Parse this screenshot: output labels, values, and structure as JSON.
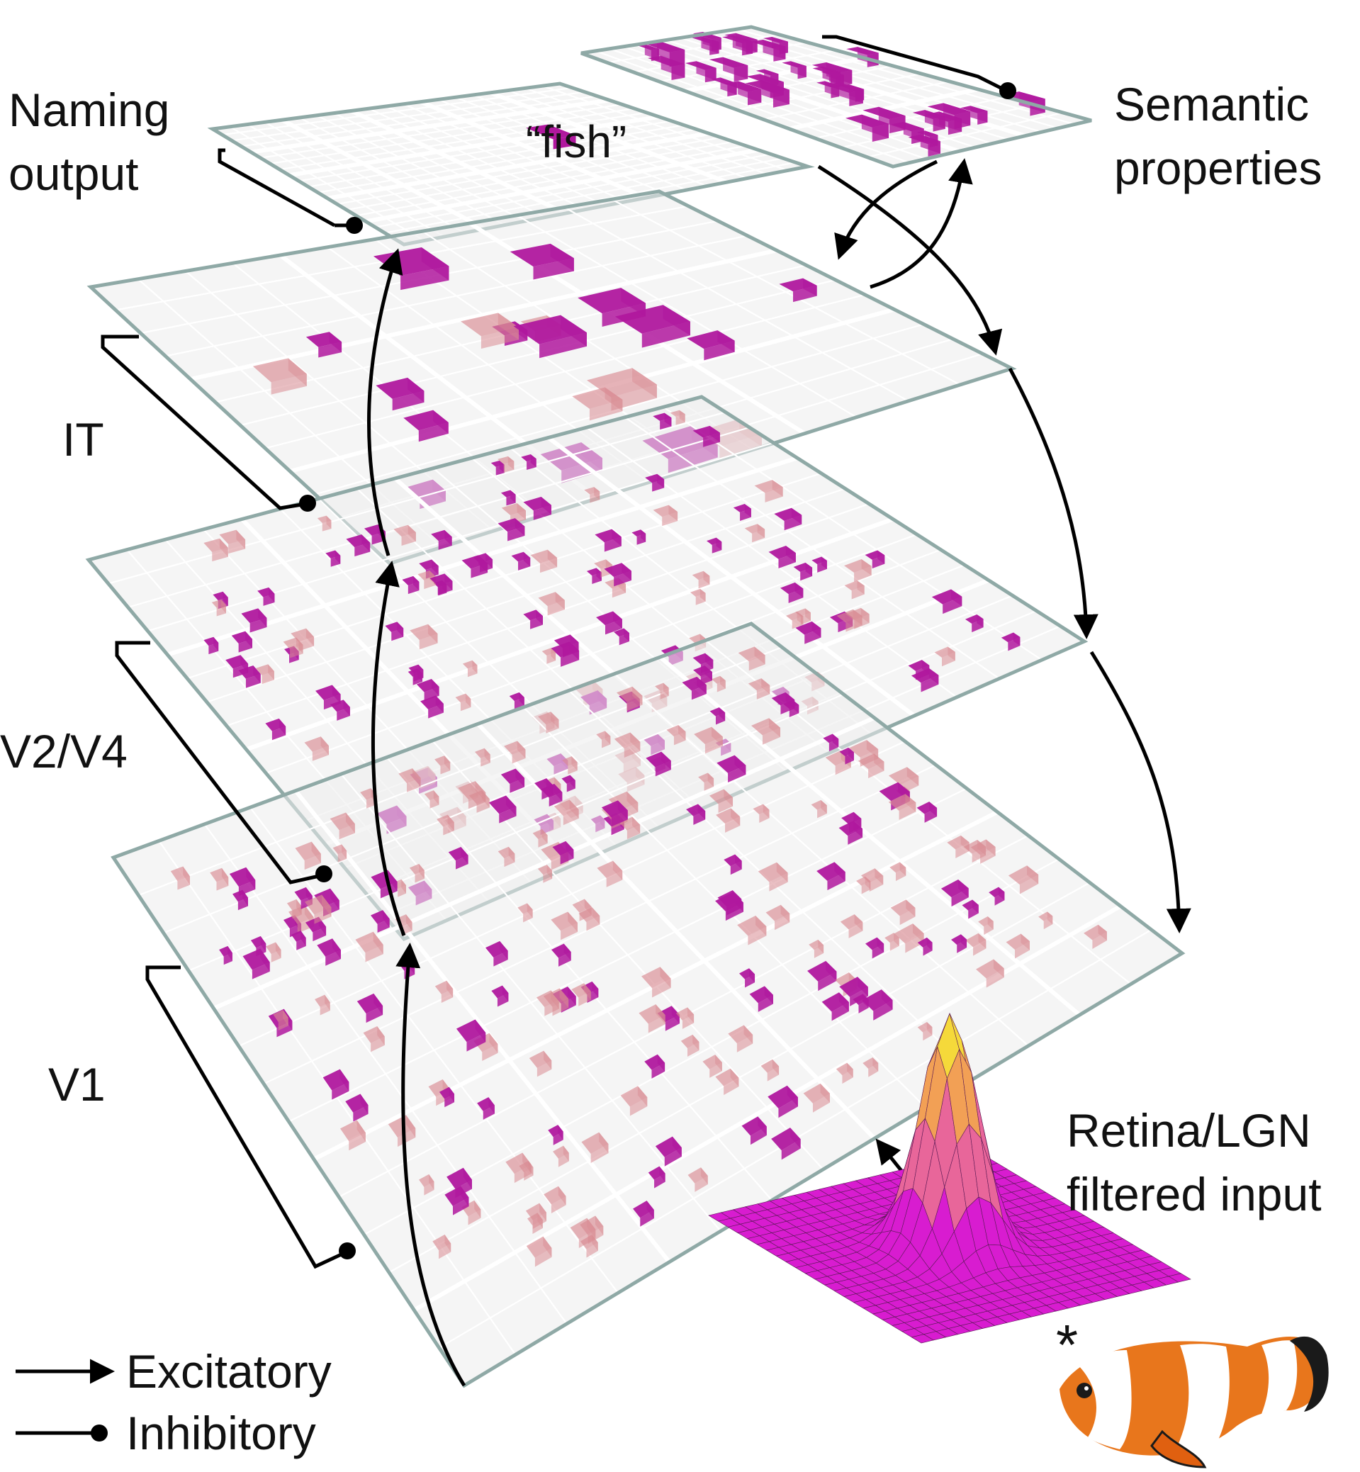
{
  "layers": {
    "naming": {
      "label_line1": "Naming",
      "label_line2": "output",
      "word": "“fish”"
    },
    "semantic": {
      "label_line1": "Semantic",
      "label_line2": "properties"
    },
    "it": {
      "label": "IT"
    },
    "v2v4": {
      "label": "V2/V4"
    },
    "v1": {
      "label": "V1"
    },
    "input": {
      "label_line1": "Retina/LGN",
      "label_line2": "filtered input",
      "operator": "*"
    }
  },
  "legend": {
    "excitatory": "Excitatory",
    "inhibitory": "Inhibitory"
  },
  "colors": {
    "unit_strong": "#b0189e",
    "unit_weak": "#d88a92",
    "sheet_border": "#8fa9a6",
    "grid_bg": "#ececec",
    "arrow": "#000000",
    "fish_orange": "#e8761c"
  }
}
